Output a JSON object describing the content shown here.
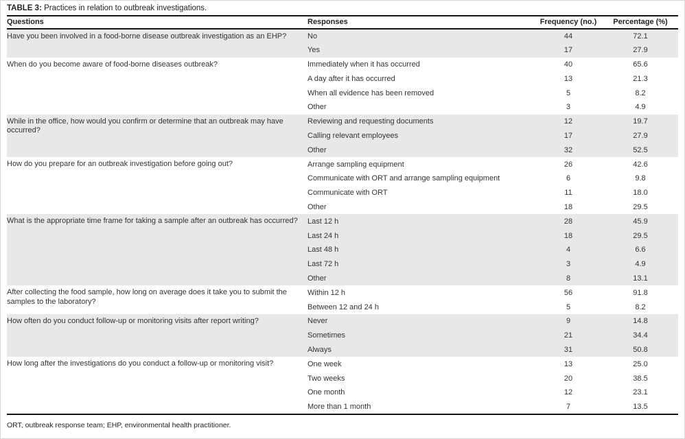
{
  "table": {
    "title_label": "TABLE 3:",
    "title_caption": " Practices in relation to outbreak investigations.",
    "columns": [
      "Questions",
      "Responses",
      "Frequency (no.)",
      "Percentage (%)"
    ],
    "groups": [
      {
        "question": "Have you been involved in a food-borne disease outbreak investigation as an EHP?",
        "responses": [
          {
            "label": "No",
            "frequency": "44",
            "percentage": "72.1"
          },
          {
            "label": "Yes",
            "frequency": "17",
            "percentage": "27.9"
          }
        ]
      },
      {
        "question": "When do you become aware of food-borne diseases outbreak?",
        "responses": [
          {
            "label": "Immediately when it has occurred",
            "frequency": "40",
            "percentage": "65.6"
          },
          {
            "label": "A day after it has occurred",
            "frequency": "13",
            "percentage": "21.3"
          },
          {
            "label": "When all evidence has been removed",
            "frequency": "5",
            "percentage": "8.2"
          },
          {
            "label": "Other",
            "frequency": "3",
            "percentage": "4.9"
          }
        ]
      },
      {
        "question": "While in the office, how would you confirm or determine that an outbreak may have occurred?",
        "responses": [
          {
            "label": "Reviewing and requesting documents",
            "frequency": "12",
            "percentage": "19.7"
          },
          {
            "label": "Calling relevant employees",
            "frequency": "17",
            "percentage": "27.9"
          },
          {
            "label": "Other",
            "frequency": "32",
            "percentage": "52.5"
          }
        ]
      },
      {
        "question": "How do you prepare for an outbreak investigation before going out?",
        "responses": [
          {
            "label": "Arrange sampling equipment",
            "frequency": "26",
            "percentage": "42.6"
          },
          {
            "label": "Communicate with ORT and arrange sampling equipment",
            "frequency": "6",
            "percentage": "9.8"
          },
          {
            "label": "Communicate with ORT",
            "frequency": "11",
            "percentage": "18.0"
          },
          {
            "label": "Other",
            "frequency": "18",
            "percentage": "29.5"
          }
        ]
      },
      {
        "question": "What is the appropriate time frame for taking a sample after an outbreak has occurred?",
        "responses": [
          {
            "label": "Last 12 h",
            "frequency": "28",
            "percentage": "45.9"
          },
          {
            "label": "Last 24 h",
            "frequency": "18",
            "percentage": "29.5"
          },
          {
            "label": "Last 48 h",
            "frequency": "4",
            "percentage": "6.6"
          },
          {
            "label": "Last 72 h",
            "frequency": "3",
            "percentage": "4.9"
          },
          {
            "label": "Other",
            "frequency": "8",
            "percentage": "13.1"
          }
        ]
      },
      {
        "question": "After collecting the food sample, how long on average does it take you to submit the samples to the laboratory?",
        "responses": [
          {
            "label": "Within 12 h",
            "frequency": "56",
            "percentage": "91.8"
          },
          {
            "label": "Between 12 and 24 h",
            "frequency": "5",
            "percentage": "8.2"
          }
        ]
      },
      {
        "question": "How often do you conduct follow-up or monitoring visits after report writing?",
        "responses": [
          {
            "label": "Never",
            "frequency": "9",
            "percentage": "14.8"
          },
          {
            "label": "Sometimes",
            "frequency": "21",
            "percentage": "34.4"
          },
          {
            "label": "Always",
            "frequency": "31",
            "percentage": "50.8"
          }
        ]
      },
      {
        "question": "How long after the investigations do you conduct a follow-up or monitoring visit?",
        "responses": [
          {
            "label": "One week",
            "frequency": "13",
            "percentage": "25.0"
          },
          {
            "label": "Two weeks",
            "frequency": "20",
            "percentage": "38.5"
          },
          {
            "label": "One month",
            "frequency": "12",
            "percentage": "23.1"
          },
          {
            "label": "More than 1 month",
            "frequency": "7",
            "percentage": "13.5"
          }
        ]
      }
    ],
    "footnote": "ORT, outbreak response team; EHP, environmental health practitioner.",
    "colors": {
      "row_shade": "#e8e8e8",
      "rule_dark": "#141414",
      "body_text": "#333333"
    }
  }
}
